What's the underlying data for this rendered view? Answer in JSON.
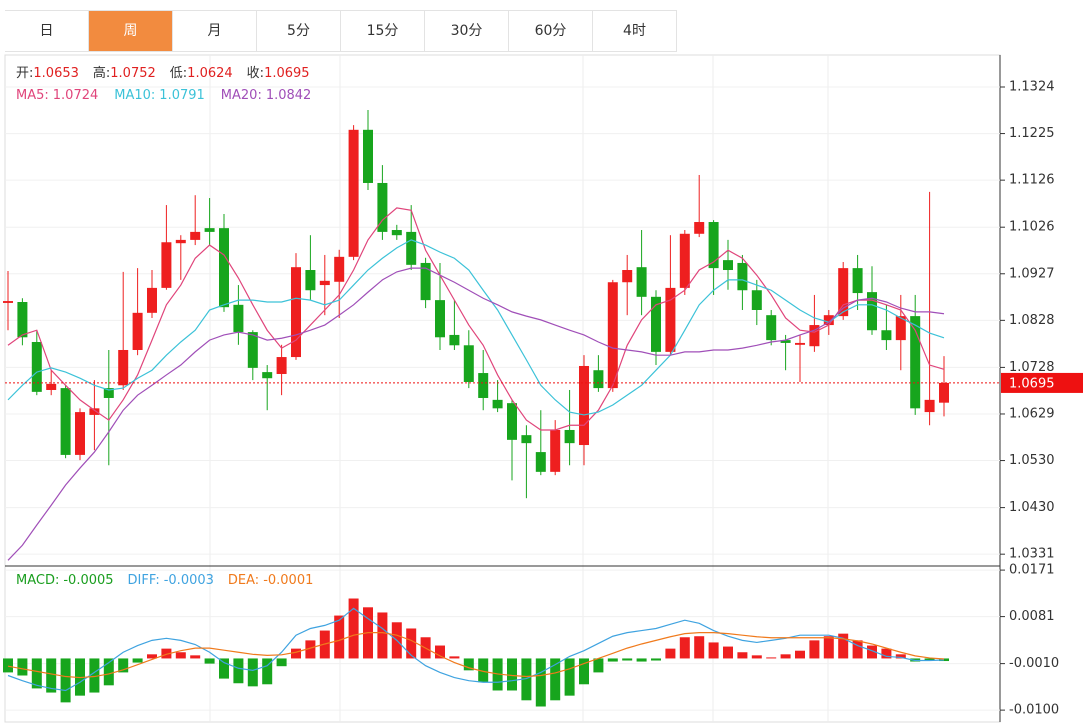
{
  "tabs": [
    {
      "label": "日"
    },
    {
      "label": "周",
      "active": true
    },
    {
      "label": "月"
    },
    {
      "label": "5分"
    },
    {
      "label": "15分"
    },
    {
      "label": "30分"
    },
    {
      "label": "60分"
    },
    {
      "label": "4时"
    }
  ],
  "chart_data": [
    {
      "type": "candlestick",
      "info": [
        {
          "label": "开:",
          "value": 1.0653
        },
        {
          "label": "高:",
          "value": 1.0752
        },
        {
          "label": "低:",
          "value": 1.0624
        },
        {
          "label": "收:",
          "value": 1.0695
        }
      ],
      "info_color": "#e02020",
      "open": [
        1.0865,
        1.0867,
        1.0782,
        1.068,
        1.0684,
        1.0542,
        1.0627,
        1.0684,
        1.069,
        1.0765,
        1.0844,
        1.0897,
        1.0992,
        1.0999,
        1.1024,
        1.1024,
        1.0861,
        1.0803,
        1.0718,
        1.0714,
        1.075,
        1.0935,
        1.0903,
        1.091,
        1.0963,
        1.1233,
        1.112,
        1.102,
        1.1016,
        1.095,
        1.0871,
        1.0797,
        1.0775,
        1.0716,
        1.0659,
        1.0652,
        1.0584,
        1.0548,
        1.0506,
        1.0595,
        1.0563,
        1.0722,
        1.0684,
        1.0909,
        1.0941,
        1.0878,
        1.0761,
        1.0897,
        1.1012,
        1.1037,
        1.0956,
        1.095,
        1.0892,
        1.0839,
        1.0786,
        1.0776,
        1.0773,
        1.0818,
        1.0837,
        1.0939,
        1.0888,
        1.0807,
        1.0786,
        1.0837,
        1.0633,
        1.0653
      ],
      "high": [
        1.0933,
        1.0875,
        1.0807,
        1.0722,
        1.069,
        1.0641,
        1.0701,
        1.0765,
        1.0931,
        1.0939,
        1.0935,
        1.1073,
        1.1009,
        1.1094,
        1.1088,
        1.1054,
        1.0903,
        1.0807,
        1.0733,
        1.0776,
        1.0971,
        1.1009,
        1.0967,
        1.0978,
        1.1243,
        1.1275,
        1.1158,
        1.1031,
        1.1073,
        1.0961,
        1.095,
        1.0871,
        1.0807,
        1.0765,
        1.0701,
        1.0659,
        1.0605,
        1.0637,
        1.0616,
        1.068,
        1.0754,
        1.0754,
        1.0914,
        1.0967,
        1.102,
        1.0892,
        1.1009,
        1.102,
        1.1137,
        1.1041,
        1.0999,
        1.0967,
        1.0914,
        1.085,
        1.0797,
        1.0797,
        1.0882,
        1.085,
        1.0952,
        1.0967,
        1.0943,
        1.0861,
        1.0882,
        1.0882,
        1.1101,
        1.0752
      ],
      "low": [
        1.0807,
        1.0775,
        1.0669,
        1.0669,
        1.0535,
        1.0531,
        1.0552,
        1.052,
        1.068,
        1.0754,
        1.0833,
        1.0893,
        1.0914,
        1.0988,
        1.0988,
        1.0846,
        1.0776,
        1.0701,
        1.0637,
        1.0669,
        1.0744,
        1.0871,
        1.0839,
        1.0833,
        1.0956,
        1.1105,
        1.0999,
        1.0999,
        1.0935,
        1.0854,
        1.0765,
        1.0765,
        1.0684,
        1.0637,
        1.0633,
        1.0488,
        1.045,
        1.0499,
        1.0499,
        1.052,
        1.052,
        1.0676,
        1.0676,
        1.0839,
        1.0839,
        1.0733,
        1.0754,
        1.0882,
        1.1005,
        1.0882,
        1.0893,
        1.085,
        1.0818,
        1.0775,
        1.0722,
        1.0697,
        1.0761,
        1.0797,
        1.0829,
        1.085,
        1.0797,
        1.0765,
        1.0722,
        1.0627,
        1.0605,
        1.0624
      ],
      "close": [
        1.0869,
        1.0792,
        1.0676,
        1.0693,
        1.0542,
        1.0633,
        1.0641,
        1.0663,
        1.0765,
        1.0844,
        1.0897,
        1.0994,
        1.0999,
        1.1016,
        1.1016,
        1.0856,
        1.0803,
        1.0727,
        1.0705,
        1.075,
        1.0941,
        1.0892,
        1.0912,
        1.0963,
        1.1233,
        1.112,
        1.1016,
        1.1009,
        1.0946,
        1.0871,
        1.0792,
        1.0775,
        1.0697,
        1.0663,
        1.0641,
        1.0574,
        1.0567,
        1.0506,
        1.0595,
        1.0567,
        1.0731,
        1.0684,
        1.0909,
        1.0935,
        1.0878,
        1.0761,
        1.0897,
        1.1012,
        1.1037,
        1.0939,
        1.0935,
        1.0892,
        1.085,
        1.0786,
        1.078,
        1.078,
        1.0818,
        1.0839,
        1.0939,
        1.0886,
        1.0807,
        1.0786,
        1.0837,
        1.0641,
        1.0659,
        1.0695
      ],
      "up_color": "#ee1f1f",
      "down_color": "#17a51d",
      "series": [
        {
          "name": "MA5:",
          "current": 1.0724,
          "color": "#e0457b",
          "values": [
            1.0775,
            1.0797,
            1.0807,
            1.0722,
            1.069,
            1.0659,
            1.0637,
            1.0616,
            1.0659,
            1.0712,
            1.0786,
            1.0861,
            1.0903,
            1.096,
            1.0988,
            1.0967,
            1.0918,
            1.0861,
            1.0807,
            1.0769,
            1.0786,
            1.0818,
            1.085,
            1.0882,
            1.0935,
            1.0999,
            1.1041,
            1.1067,
            1.1062,
            1.0977,
            1.0924,
            1.0871,
            1.0818,
            1.0775,
            1.0712,
            1.0659,
            1.0616,
            1.0595,
            1.0595,
            1.0605,
            1.0605,
            1.0637,
            1.069,
            1.0775,
            1.0829,
            1.0861,
            1.0871,
            1.0892,
            1.0935,
            1.0952,
            1.0977,
            1.096,
            1.0924,
            1.0882,
            1.0833,
            1.0807,
            1.0803,
            1.0818,
            1.0861,
            1.0871,
            1.0871,
            1.0861,
            1.085,
            1.0807,
            1.0733,
            1.0724
          ]
        },
        {
          "name": "MA10:",
          "current": 1.0791,
          "color": "#3cc2d8",
          "values": [
            1.0659,
            1.069,
            1.0718,
            1.0727,
            1.0718,
            1.0705,
            1.069,
            1.068,
            1.0684,
            1.0705,
            1.0722,
            1.0754,
            1.0782,
            1.0807,
            1.085,
            1.0861,
            1.0871,
            1.0871,
            1.0867,
            1.0867,
            1.0875,
            1.0871,
            1.0861,
            1.0871,
            1.0903,
            1.0935,
            1.096,
            1.0982,
            1.0999,
            1.0988,
            1.0973,
            1.096,
            1.0935,
            1.0892,
            1.085,
            1.0797,
            1.0744,
            1.069,
            1.0659,
            1.0633,
            1.0627,
            1.0633,
            1.0648,
            1.0669,
            1.069,
            1.0722,
            1.0754,
            1.0807,
            1.0861,
            1.0892,
            1.0914,
            1.0914,
            1.0903,
            1.0892,
            1.0871,
            1.085,
            1.0833,
            1.0824,
            1.0846,
            1.0861,
            1.0861,
            1.085,
            1.0833,
            1.0818,
            1.0801,
            1.0791
          ]
        },
        {
          "name": "MA20:",
          "current": 1.0842,
          "color": "#a04fb8",
          "values": [
            1.0318,
            1.035,
            1.0393,
            1.0435,
            1.0478,
            1.0514,
            1.0548,
            1.0591,
            1.0637,
            1.0669,
            1.069,
            1.0712,
            1.0733,
            1.0761,
            1.0786,
            1.0797,
            1.0803,
            1.0797,
            1.0786,
            1.079,
            1.0797,
            1.0807,
            1.0818,
            1.0839,
            1.0861,
            1.0888,
            1.0914,
            1.0931,
            1.0939,
            1.0939,
            1.0924,
            1.0909,
            1.0892,
            1.0875,
            1.0861,
            1.0846,
            1.0837,
            1.0829,
            1.0818,
            1.0807,
            1.0797,
            1.0782,
            1.0769,
            1.0765,
            1.0761,
            1.0754,
            1.0754,
            1.0761,
            1.0761,
            1.0765,
            1.0765,
            1.0769,
            1.0775,
            1.0782,
            1.0786,
            1.0797,
            1.0807,
            1.0824,
            1.0854,
            1.0871,
            1.0875,
            1.0867,
            1.0854,
            1.0846,
            1.0846,
            1.0842
          ]
        }
      ],
      "ylim": [
        1.0308,
        1.1392
      ],
      "yticks": [
        1.1324,
        1.1225,
        1.1126,
        1.1026,
        1.0927,
        1.0828,
        1.0728,
        1.0629,
        {
          "value": 1.053,
          "label": "1.0530"
        },
        {
          "value": 1.043,
          "label": "1.0430"
        },
        1.0331
      ],
      "last_price": 1.0695,
      "last_price_color": "#ee1111",
      "grid": true
    },
    {
      "type": "macd",
      "info": {
        "label": "MACD:",
        "value": -0.0005,
        "color": "#1a9e1f"
      },
      "values": [
        -0.0027,
        -0.0033,
        -0.0058,
        -0.0066,
        -0.0085,
        -0.0072,
        -0.0066,
        -0.0052,
        -0.0027,
        -0.0008,
        0.0008,
        0.0019,
        0.0012,
        0.0006,
        -0.001,
        -0.0039,
        -0.0048,
        -0.0054,
        -0.005,
        -0.0015,
        0.0019,
        0.0035,
        0.0054,
        0.0083,
        0.0116,
        0.0099,
        0.0089,
        0.007,
        0.0058,
        0.0041,
        0.0025,
        0.0004,
        -0.0023,
        -0.0046,
        -0.0062,
        -0.0062,
        -0.0081,
        -0.0093,
        -0.0081,
        -0.0072,
        -0.005,
        -0.0027,
        -0.0006,
        -0.0004,
        -0.0006,
        -0.0004,
        0.0019,
        0.0041,
        0.0043,
        0.0031,
        0.0023,
        0.0012,
        0.0006,
        0.0002,
        0.0008,
        0.0015,
        0.0035,
        0.0043,
        0.0048,
        0.0035,
        0.0025,
        0.0019,
        0.0008,
        -0.0006,
        -0.0004,
        -0.0005
      ],
      "up_color": "#ee1f1f",
      "down_color": "#17a51d",
      "series": [
        {
          "name": "DIFF:",
          "current": -0.0003,
          "color": "#3fa3e0",
          "values": [
            -0.0033,
            -0.0043,
            -0.0052,
            -0.0058,
            -0.0062,
            -0.0046,
            -0.0027,
            -0.0008,
            0.0012,
            0.0025,
            0.0035,
            0.0039,
            0.0035,
            0.0027,
            0.0012,
            -0.0008,
            -0.0019,
            -0.0023,
            -0.0014,
            0.0012,
            0.0045,
            0.0058,
            0.0064,
            0.0074,
            0.0097,
            0.0077,
            0.0058,
            0.0035,
            0.0006,
            -0.0014,
            -0.0027,
            -0.0037,
            -0.0043,
            -0.0046,
            -0.0046,
            -0.0043,
            -0.0039,
            -0.0027,
            -0.0012,
            0.0004,
            0.0015,
            0.0029,
            0.0043,
            0.005,
            0.0054,
            0.0058,
            0.0066,
            0.0074,
            0.0068,
            0.0054,
            0.0043,
            0.0035,
            0.0031,
            0.0035,
            0.0039,
            0.0045,
            0.0045,
            0.0045,
            0.0039,
            0.0025,
            0.0015,
            0.0004,
            0.0002,
            -0.0004,
            -0.0004,
            -0.0003
          ]
        },
        {
          "name": "DEA:",
          "current": -0.0001,
          "color": "#f07a1c",
          "values": [
            -0.0015,
            -0.002,
            -0.0025,
            -0.003,
            -0.0035,
            -0.0037,
            -0.0035,
            -0.003,
            -0.0022,
            -0.0012,
            -0.0002,
            0.0008,
            0.0015,
            0.002,
            0.002,
            0.0016,
            0.0012,
            0.0008,
            0.0006,
            0.0007,
            0.0012,
            0.002,
            0.0028,
            0.0035,
            0.0045,
            0.005,
            0.005,
            0.0045,
            0.0035,
            0.002,
            0.0005,
            -0.0008,
            -0.0018,
            -0.0025,
            -0.003,
            -0.0033,
            -0.0035,
            -0.0033,
            -0.0028,
            -0.002,
            -0.001,
            0.0,
            0.001,
            0.002,
            0.0028,
            0.0035,
            0.0042,
            0.0048,
            0.005,
            0.005,
            0.0048,
            0.0045,
            0.0042,
            0.004,
            0.004,
            0.004,
            0.004,
            0.004,
            0.0038,
            0.0034,
            0.0028,
            0.002,
            0.0012,
            0.0005,
            0.0001,
            -0.0001
          ]
        }
      ],
      "ylim": [
        -0.0123,
        0.0177
      ],
      "yticks": [
        0.0171,
        0.0081,
        {
          "value": -0.001,
          "label": "-0.0010"
        },
        {
          "value": -0.01,
          "label": "-0.0100"
        }
      ],
      "grid": true
    }
  ]
}
